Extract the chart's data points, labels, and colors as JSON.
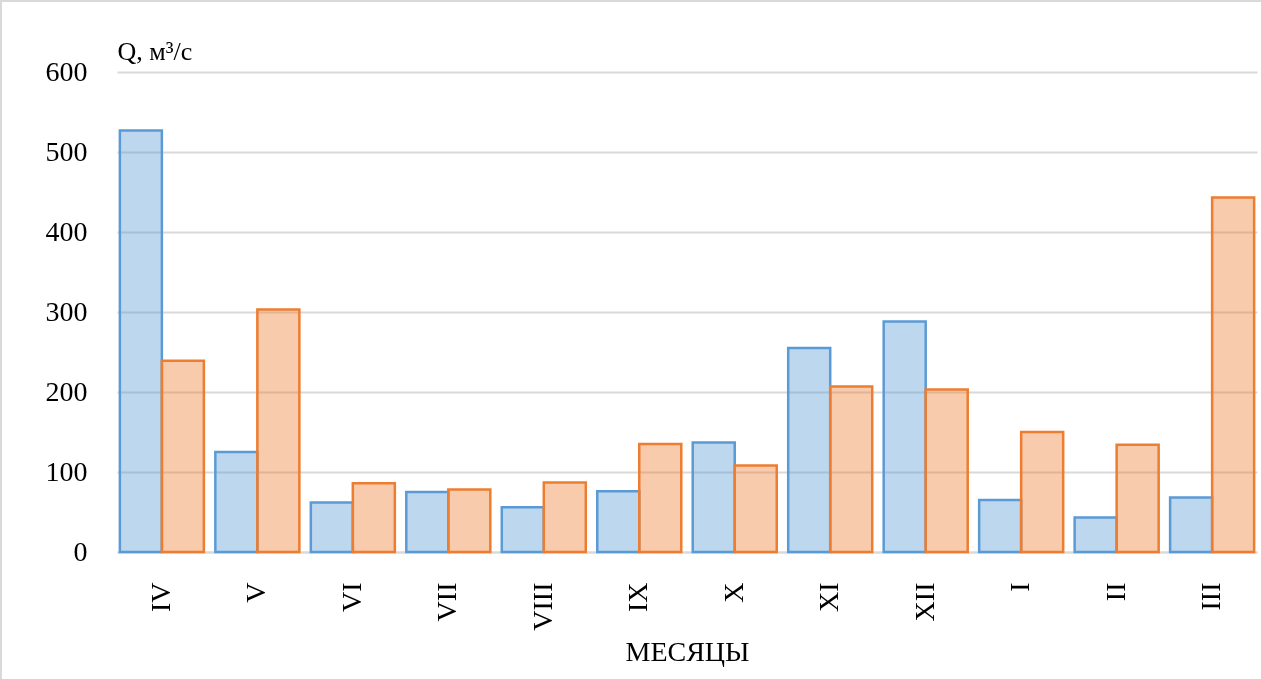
{
  "chart_data": {
    "type": "bar",
    "xlabel": "МЕСЯЦЫ",
    "ylabel": "Q, м³/с",
    "categories": [
      "IV",
      "V",
      "VI",
      "VII",
      "VIII",
      "IX",
      "X",
      "XI",
      "XII",
      "I",
      "II",
      "III"
    ],
    "series": [
      {
        "color": "#5b9bd5",
        "values": [
          527,
          125,
          62,
          75,
          56,
          76,
          137,
          255,
          288,
          65,
          43,
          68
        ]
      },
      {
        "color": "#ed7d31",
        "values": [
          239,
          303,
          86,
          78,
          87,
          135,
          108,
          207,
          203,
          150,
          134,
          443
        ]
      }
    ],
    "ylim": [
      0,
      600
    ],
    "yticks": [
      0,
      100,
      200,
      300,
      400,
      500,
      600
    ],
    "grid": "y"
  }
}
